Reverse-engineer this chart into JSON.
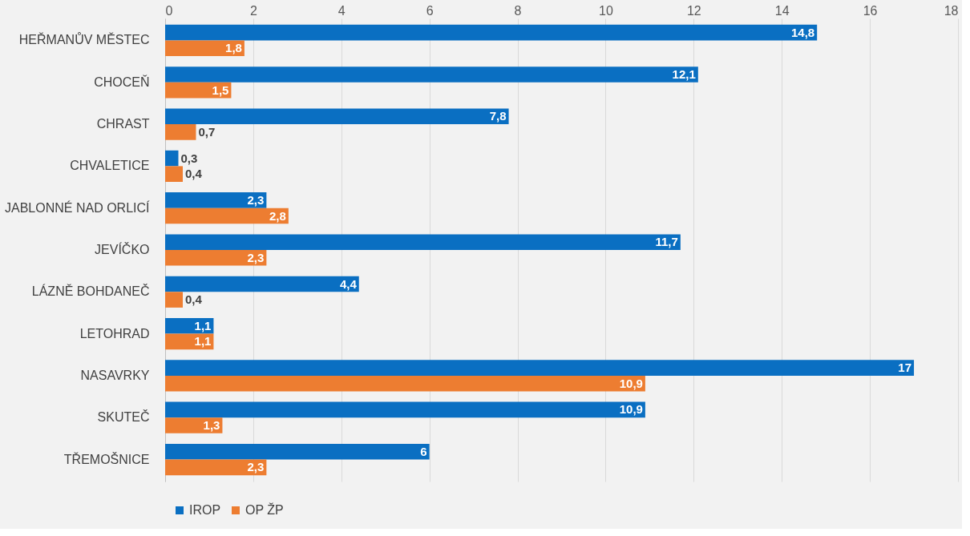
{
  "chart_data": {
    "type": "bar",
    "orientation": "horizontal",
    "categories": [
      "HEŘMANŮV MĚSTEC",
      "CHOCEŇ",
      "CHRAST",
      "CHVALETICE",
      "JABLONNÉ NAD ORLICÍ",
      "JEVÍČKO",
      "LÁZNĚ BOHDANEČ",
      "LETOHRAD",
      "NASAVRKY",
      "SKUTEČ",
      "TŘEMOŠNICE"
    ],
    "series": [
      {
        "name": "IROP",
        "color": "#0a6fc2",
        "values": [
          14.8,
          12.1,
          7.8,
          0.3,
          2.3,
          11.7,
          4.4,
          1.1,
          17,
          10.9,
          6
        ],
        "value_labels": [
          "14,8",
          "12,1",
          "7,8",
          "0,3",
          "2,3",
          "11,7",
          "4,4",
          "1,1",
          "17",
          "10,9",
          "6"
        ]
      },
      {
        "name": "OP ŽP",
        "color": "#ed7d31",
        "values": [
          1.8,
          1.5,
          0.7,
          0.4,
          2.8,
          2.3,
          0.4,
          1.1,
          10.9,
          1.3,
          2.3
        ],
        "value_labels": [
          "1,8",
          "1,5",
          "0,7",
          "0,4",
          "2,8",
          "2,3",
          "0,4",
          "1,1",
          "10,9",
          "1,3",
          "2,3"
        ]
      }
    ],
    "xlim": [
      0,
      18
    ],
    "xticks": [
      0,
      2,
      4,
      6,
      8,
      10,
      12,
      14,
      16,
      18
    ],
    "grid": "x",
    "legend": "bottom"
  }
}
